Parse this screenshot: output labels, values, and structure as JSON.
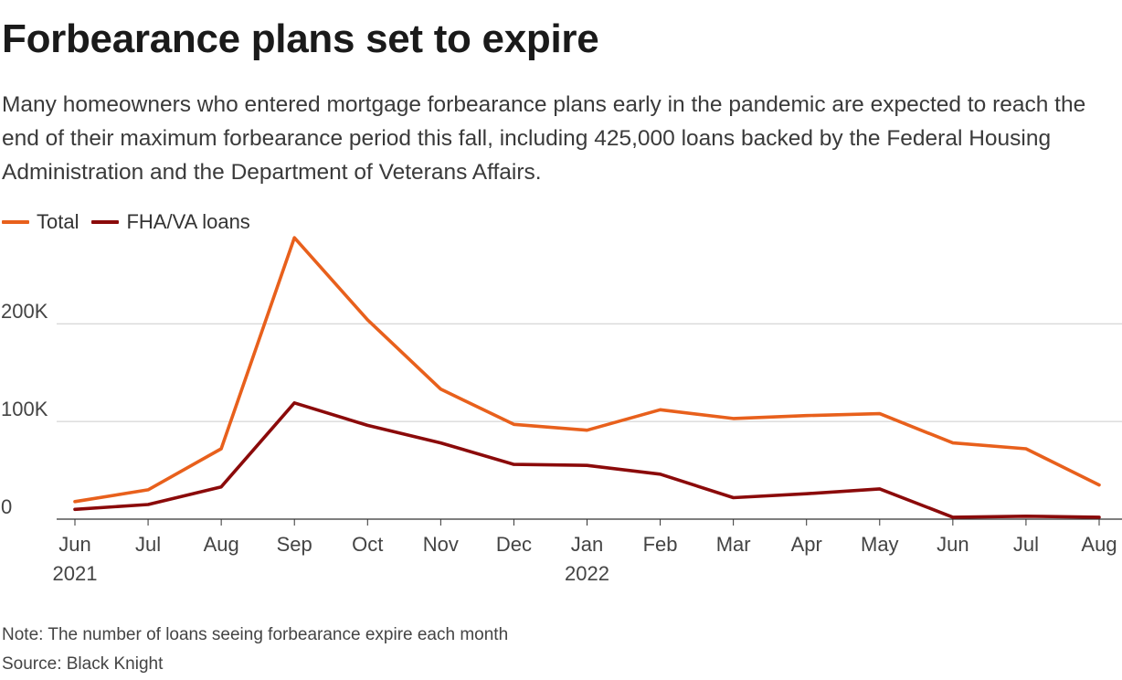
{
  "title": "Forbearance plans set to expire",
  "subtitle": "Many homeowners who entered mortgage forbearance plans early in the pandemic are expected to reach the end of their maximum forbearance period this fall, including 425,000 loans backed by the Federal Housing Administration and the Department of Veterans Affairs.",
  "note": "Note: The number of loans seeing forbearance expire each month",
  "source": "Source: Black Knight",
  "colors": {
    "total": "#e8601c",
    "fha_va": "#8b0a0a",
    "grid": "#cccccc",
    "axis": "#444444"
  },
  "chart_data": {
    "type": "line",
    "title": "Forbearance plans set to expire",
    "xlabel": "",
    "ylabel": "",
    "ylim": [
      0,
      290000
    ],
    "grid": true,
    "legend_position": "top-left",
    "categories": [
      "Jun",
      "Jul",
      "Aug",
      "Sep",
      "Oct",
      "Nov",
      "Dec",
      "Jan",
      "Feb",
      "Mar",
      "Apr",
      "May",
      "Jun",
      "Jul",
      "Aug"
    ],
    "year_labels": [
      {
        "index": 0,
        "label": "2021"
      },
      {
        "index": 7,
        "label": "2022"
      }
    ],
    "y_ticks": [
      {
        "value": 0,
        "label": "0"
      },
      {
        "value": 100000,
        "label": "100K"
      },
      {
        "value": 200000,
        "label": "200K"
      }
    ],
    "series": [
      {
        "name": "Total",
        "color": "#e8601c",
        "values": [
          18000,
          30000,
          72000,
          288000,
          204000,
          133000,
          97000,
          91000,
          112000,
          103000,
          106000,
          108000,
          78000,
          72000,
          35000
        ]
      },
      {
        "name": "FHA/VA loans",
        "color": "#8b0a0a",
        "values": [
          10000,
          15000,
          33000,
          119000,
          96000,
          78000,
          56000,
          55000,
          46000,
          22000,
          26000,
          31000,
          2000,
          3000,
          2000
        ]
      }
    ]
  }
}
